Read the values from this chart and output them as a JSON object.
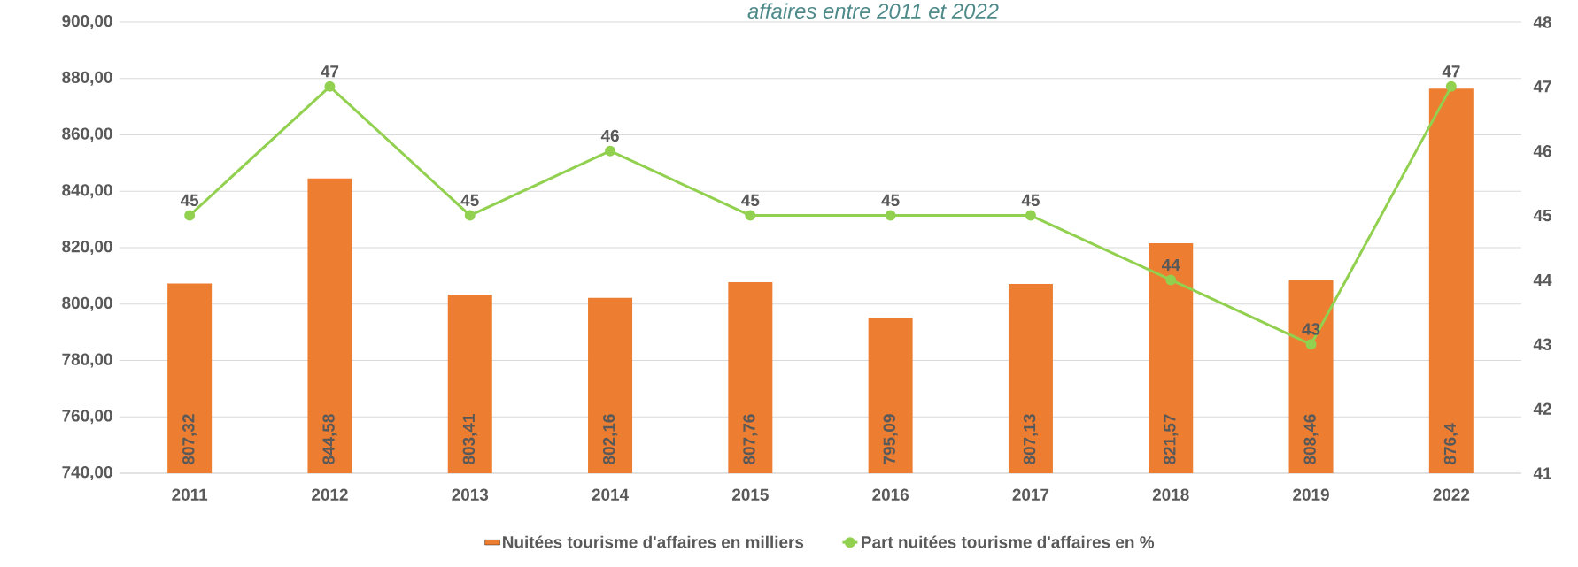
{
  "chart_data": {
    "type": "bar",
    "title": "affaires entre 2011 et 2022",
    "categories": [
      "2011",
      "2012",
      "2013",
      "2014",
      "2015",
      "2016",
      "2017",
      "2018",
      "2019",
      "2022"
    ],
    "series": [
      {
        "name": "Nuitées tourisme d'affaires en milliers",
        "color": "#ed7d31",
        "values": [
          807.32,
          844.58,
          803.41,
          802.16,
          807.76,
          795.09,
          807.13,
          821.57,
          808.46,
          876.4
        ],
        "value_labels": [
          "807,32",
          "844,58",
          "803,41",
          "802,16",
          "807,76",
          "795,09",
          "807,13",
          "821,57",
          "808,46",
          "876,4"
        ]
      },
      {
        "name": "Part nuitées tourisme d'affaires en %",
        "type": "line",
        "axis": "y2",
        "color": "#92d050",
        "marker": "circle",
        "values": [
          45,
          47,
          45,
          46,
          45,
          45,
          45,
          44,
          43,
          47
        ],
        "value_labels": [
          "45",
          "47",
          "45",
          "46",
          "45",
          "45",
          "45",
          "44",
          "43",
          "47"
        ]
      }
    ],
    "ylim": [
      740,
      900
    ],
    "yticks": [
      {
        "value": 740,
        "label": "740,00"
      },
      {
        "value": 760,
        "label": "760,00"
      },
      {
        "value": 780,
        "label": "780,00"
      },
      {
        "value": 800,
        "label": "800,00"
      },
      {
        "value": 820,
        "label": "820,00"
      },
      {
        "value": 840,
        "label": "840,00"
      },
      {
        "value": 860,
        "label": "860,00"
      },
      {
        "value": 880,
        "label": "880,00"
      },
      {
        "value": 900,
        "label": "900,00"
      }
    ],
    "y2lim": [
      41,
      48
    ],
    "y2ticks": [
      41,
      42,
      43,
      44,
      45,
      46,
      47,
      48
    ],
    "grid": "y",
    "legend": "bottom"
  }
}
